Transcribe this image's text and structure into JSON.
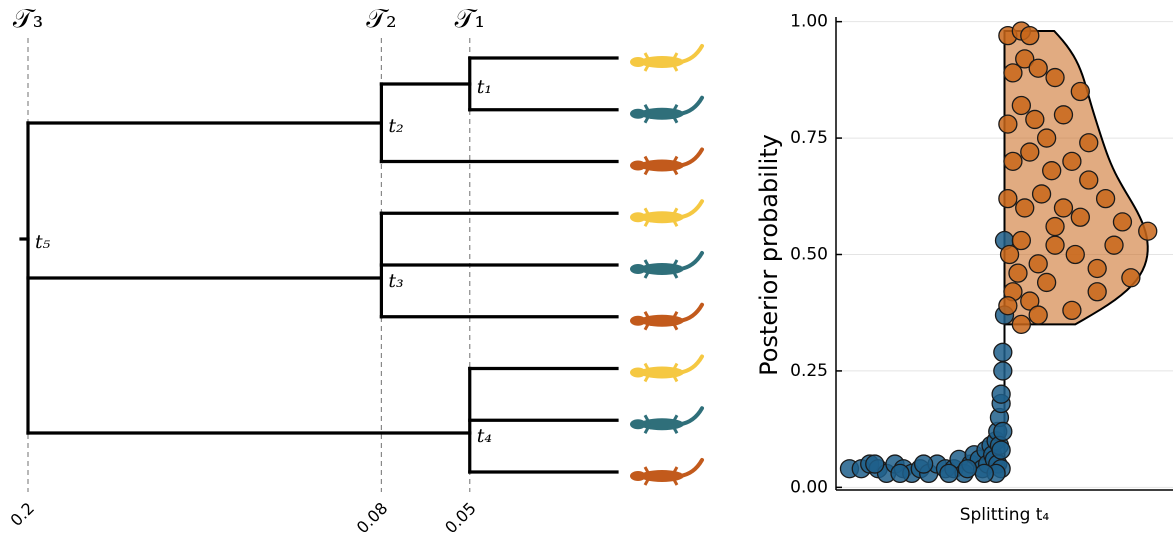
{
  "tree": {
    "time_labels": [
      "𝒯₃",
      "𝒯₂",
      "𝒯₁"
    ],
    "times": [
      0.2,
      0.08,
      0.05
    ],
    "nodes": [
      {
        "label": "t₁",
        "time": 0.05
      },
      {
        "label": "t₂",
        "time": 0.08
      },
      {
        "label": "t₃",
        "time": 0.08
      },
      {
        "label": "t₄",
        "time": 0.05
      },
      {
        "label": "t₅",
        "time": 0.2
      }
    ],
    "leaf_colors": [
      "#f5c842",
      "#2f6f7a",
      "#c25a1c",
      "#f5c842",
      "#2f6f7a",
      "#c25a1c",
      "#f5c842",
      "#2f6f7a",
      "#c25a1c"
    ]
  },
  "chart_data": {
    "type": "scatter",
    "xlabel": "Splitting t₄",
    "ylabel": "Posterior probability",
    "xlim": [
      -1,
      1
    ],
    "ylim": [
      -0.01,
      1.01
    ],
    "yticks": [
      {
        "value": 0,
        "label": "0.00"
      },
      {
        "value": 0.25,
        "label": "0.25"
      },
      {
        "value": 0.5,
        "label": "0.50"
      },
      {
        "value": 0.75,
        "label": "0.75"
      },
      {
        "value": 1,
        "label": "1.00"
      }
    ],
    "grid": true,
    "series": [
      {
        "color": "#1f5f8b",
        "violin": false,
        "x": [
          -0.92,
          -0.85,
          -0.8,
          -0.75,
          -0.7,
          -0.65,
          -0.6,
          -0.55,
          -0.5,
          -0.45,
          -0.4,
          -0.35,
          -0.3,
          -0.27,
          -0.24,
          -0.2,
          -0.18,
          -0.15,
          -0.13,
          -0.11,
          -0.1,
          -0.08,
          -0.07,
          -0.06,
          -0.05,
          -0.04,
          -0.04,
          -0.03,
          -0.03,
          -0.02,
          -0.02,
          -0.02,
          -0.01,
          -0.01,
          -0.01,
          0,
          0,
          -0.02,
          -0.05,
          -0.12,
          -0.22,
          -0.33,
          -0.48,
          -0.62,
          -0.77
        ],
        "values": [
          0.04,
          0.04,
          0.05,
          0.04,
          0.03,
          0.05,
          0.04,
          0.03,
          0.04,
          0.03,
          0.05,
          0.04,
          0.04,
          0.06,
          0.03,
          0.05,
          0.07,
          0.06,
          0.04,
          0.08,
          0.05,
          0.09,
          0.07,
          0.06,
          0.1,
          0.12,
          0.05,
          0.15,
          0.09,
          0.18,
          0.2,
          0.08,
          0.25,
          0.12,
          0.29,
          0.37,
          0.53,
          0.04,
          0.03,
          0.03,
          0.04,
          0.03,
          0.05,
          0.03,
          0.05
        ]
      },
      {
        "color": "#c8661a",
        "violin": true,
        "x": [
          0.02,
          0.1,
          0.15,
          0.05,
          0.12,
          0.2,
          0.3,
          0.02,
          0.1,
          0.18,
          0.25,
          0.35,
          0.05,
          0.15,
          0.28,
          0.4,
          0.5,
          0.02,
          0.12,
          0.22,
          0.35,
          0.45,
          0.6,
          0.7,
          0.85,
          0.03,
          0.1,
          0.2,
          0.3,
          0.42,
          0.55,
          0.65,
          0.75,
          0.05,
          0.15,
          0.25,
          0.4,
          0.1,
          0.2,
          0.55,
          0.02,
          0.08,
          0.3,
          0.5,
          0.45
        ],
        "values": [
          0.97,
          0.98,
          0.97,
          0.89,
          0.92,
          0.9,
          0.88,
          0.78,
          0.82,
          0.79,
          0.75,
          0.8,
          0.7,
          0.72,
          0.68,
          0.7,
          0.66,
          0.62,
          0.6,
          0.63,
          0.6,
          0.58,
          0.62,
          0.57,
          0.55,
          0.5,
          0.53,
          0.48,
          0.52,
          0.5,
          0.47,
          0.52,
          0.45,
          0.42,
          0.4,
          0.44,
          0.38,
          0.35,
          0.37,
          0.42,
          0.39,
          0.46,
          0.56,
          0.74,
          0.85
        ]
      }
    ]
  }
}
